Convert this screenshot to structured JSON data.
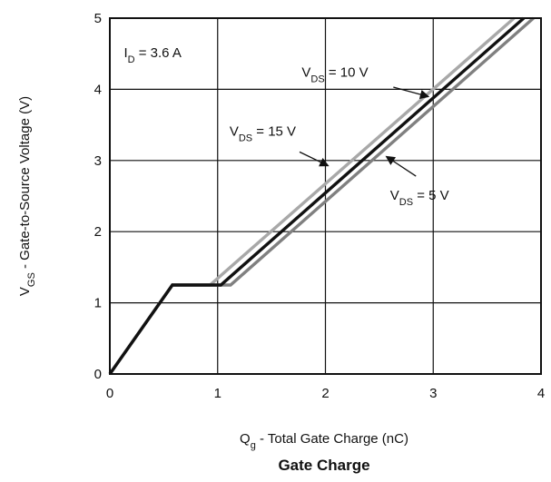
{
  "chart_data": {
    "type": "line",
    "title": "Gate Charge",
    "xlabel": {
      "main": "Q",
      "sub": "g",
      "rest": " - Total Gate Charge (nC)"
    },
    "ylabel": {
      "main": "V",
      "sub": "GS",
      "rest": " - Gate-to-Source Voltage (V)"
    },
    "xlim": [
      0,
      4
    ],
    "ylim": [
      0,
      5
    ],
    "xticks": [
      "0",
      "1",
      "2",
      "3",
      "4"
    ],
    "yticks": [
      "0",
      "1",
      "2",
      "3",
      "4",
      "5"
    ],
    "grid": true,
    "series": [
      {
        "key": "vds15",
        "color": "#a8a8a8",
        "points": [
          [
            0,
            0
          ],
          [
            0.58,
            1.25
          ],
          [
            0.93,
            1.25
          ],
          [
            3.75,
            5.0
          ]
        ]
      },
      {
        "key": "vds5",
        "color": "#808080",
        "points": [
          [
            0,
            0
          ],
          [
            0.58,
            1.25
          ],
          [
            1.12,
            1.25
          ],
          [
            3.93,
            5.0
          ]
        ]
      },
      {
        "key": "vds10",
        "color": "#111111",
        "points": [
          [
            0,
            0
          ],
          [
            0.58,
            1.25
          ],
          [
            1.03,
            1.25
          ],
          [
            3.84,
            5.0
          ]
        ]
      }
    ],
    "annotations": [
      {
        "key": "id",
        "main": "I",
        "sub": "D",
        "rest": " = 3.6 A",
        "x": 0.13,
        "y": 4.45
      },
      {
        "key": "vds10",
        "main": "V",
        "sub": "DS",
        "rest": " = 10 V",
        "x": 1.78,
        "y": 4.18,
        "arrow_from": [
          2.63,
          4.03
        ],
        "arrow_to": [
          2.95,
          3.9
        ]
      },
      {
        "key": "vds15",
        "main": "V",
        "sub": "DS",
        "rest": " = 15 V",
        "x": 1.11,
        "y": 3.35,
        "arrow_from": [
          1.76,
          3.12
        ],
        "arrow_to": [
          2.02,
          2.93
        ]
      },
      {
        "key": "vds5",
        "main": "V",
        "sub": "DS",
        "rest": " = 5 V",
        "x": 2.6,
        "y": 2.45,
        "arrow_from": [
          2.84,
          2.78
        ],
        "arrow_to": [
          2.57,
          3.05
        ]
      }
    ]
  }
}
